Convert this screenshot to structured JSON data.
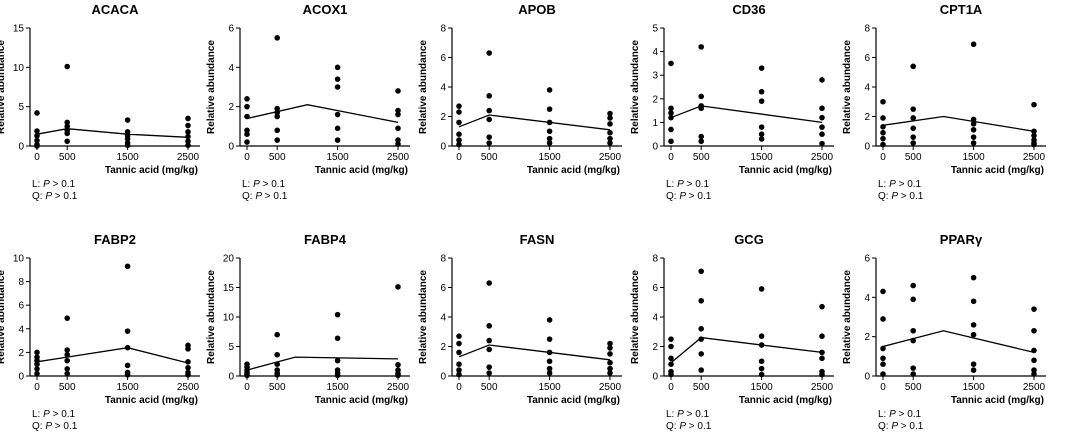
{
  "figure": {
    "xlabel": "Tannic acid (mg/kg)",
    "ylabel": "Relative abundance",
    "colors": {
      "points": "#000000",
      "axes": "#000000",
      "background": "#ffffff"
    }
  },
  "chart_data": [
    {
      "type": "scatter",
      "title": "ACACA",
      "xlabel": "Tannic acid (mg/kg)",
      "ylabel": "Relative abundance",
      "x_categories": [
        "0",
        "500",
        "1500",
        "2500"
      ],
      "ylim": [
        0,
        15
      ],
      "yticks": [
        0,
        5,
        10,
        15
      ],
      "points": [
        [
          0,
          4.2
        ],
        [
          0,
          1.9
        ],
        [
          0,
          1.3
        ],
        [
          0,
          0.7
        ],
        [
          0,
          0.2
        ],
        [
          0,
          0.0
        ],
        [
          500,
          10.1
        ],
        [
          500,
          3.0
        ],
        [
          500,
          2.5
        ],
        [
          500,
          2.0
        ],
        [
          500,
          1.6
        ],
        [
          500,
          0.6
        ],
        [
          1500,
          3.3
        ],
        [
          1500,
          1.8
        ],
        [
          1500,
          1.3
        ],
        [
          1500,
          0.9
        ],
        [
          1500,
          0.4
        ],
        [
          1500,
          0.1
        ],
        [
          2500,
          3.5
        ],
        [
          2500,
          2.6
        ],
        [
          2500,
          1.8
        ],
        [
          2500,
          1.2
        ],
        [
          2500,
          0.6
        ],
        [
          2500,
          0.1
        ]
      ],
      "trend": [
        [
          0,
          1.5
        ],
        [
          500,
          2.2
        ],
        [
          1500,
          1.5
        ],
        [
          2500,
          1.1
        ]
      ],
      "stats": {
        "L": "P > 0.1",
        "Q": "P > 0.1"
      }
    },
    {
      "type": "scatter",
      "title": "ACOX1",
      "xlabel": "Tannic acid (mg/kg)",
      "ylabel": "Relative abundance",
      "x_categories": [
        "0",
        "500",
        "1500",
        "2500"
      ],
      "ylim": [
        0,
        6
      ],
      "yticks": [
        0,
        2,
        4,
        6
      ],
      "points": [
        [
          0,
          2.4
        ],
        [
          0,
          2.0
        ],
        [
          0,
          1.5
        ],
        [
          0,
          0.8
        ],
        [
          0,
          0.6
        ],
        [
          0,
          0.2
        ],
        [
          500,
          5.5
        ],
        [
          500,
          1.9
        ],
        [
          500,
          1.7
        ],
        [
          500,
          1.5
        ],
        [
          500,
          0.8
        ],
        [
          500,
          0.3
        ],
        [
          1500,
          4.0
        ],
        [
          1500,
          3.4
        ],
        [
          1500,
          3.0
        ],
        [
          1500,
          1.6
        ],
        [
          1500,
          0.9
        ],
        [
          1500,
          0.3
        ],
        [
          2500,
          2.8
        ],
        [
          2500,
          1.8
        ],
        [
          2500,
          1.6
        ],
        [
          2500,
          0.9
        ],
        [
          2500,
          0.3
        ],
        [
          2500,
          0.1
        ]
      ],
      "trend": [
        [
          0,
          1.4
        ],
        [
          1000,
          2.1
        ],
        [
          2500,
          1.2
        ]
      ],
      "stats": {
        "L": "P > 0.1",
        "Q": "P > 0.1"
      }
    },
    {
      "type": "scatter",
      "title": "APOB",
      "xlabel": "Tannic acid (mg/kg)",
      "ylabel": "Relative abundance",
      "x_categories": [
        "0",
        "500",
        "1500",
        "2500"
      ],
      "ylim": [
        0,
        8
      ],
      "yticks": [
        0,
        2,
        4,
        6,
        8
      ],
      "points": [
        [
          0,
          2.7
        ],
        [
          0,
          2.3
        ],
        [
          0,
          1.6
        ],
        [
          0,
          0.8
        ],
        [
          0,
          0.4
        ],
        [
          0,
          0.1
        ],
        [
          500,
          6.3
        ],
        [
          500,
          3.4
        ],
        [
          500,
          2.4
        ],
        [
          500,
          1.8
        ],
        [
          500,
          0.6
        ],
        [
          500,
          0.2
        ],
        [
          1500,
          3.8
        ],
        [
          1500,
          2.5
        ],
        [
          1500,
          1.6
        ],
        [
          1500,
          1.0
        ],
        [
          1500,
          0.5
        ],
        [
          1500,
          0.2
        ],
        [
          2500,
          2.2
        ],
        [
          2500,
          1.9
        ],
        [
          2500,
          1.5
        ],
        [
          2500,
          0.9
        ],
        [
          2500,
          0.5
        ],
        [
          2500,
          0.2
        ]
      ],
      "trend": [
        [
          0,
          1.3
        ],
        [
          500,
          2.1
        ],
        [
          2500,
          1.1
        ]
      ],
      "stats": {}
    },
    {
      "type": "scatter",
      "title": "CD36",
      "xlabel": "Tannic acid (mg/kg)",
      "ylabel": "Relative abundance",
      "x_categories": [
        "0",
        "500",
        "1500",
        "2500"
      ],
      "ylim": [
        0,
        5
      ],
      "yticks": [
        0,
        1,
        2,
        3,
        4,
        5
      ],
      "points": [
        [
          0,
          3.5
        ],
        [
          0,
          1.6
        ],
        [
          0,
          1.4
        ],
        [
          0,
          1.2
        ],
        [
          0,
          0.7
        ],
        [
          0,
          0.2
        ],
        [
          500,
          4.2
        ],
        [
          500,
          2.1
        ],
        [
          500,
          1.7
        ],
        [
          500,
          1.6
        ],
        [
          500,
          0.4
        ],
        [
          500,
          0.2
        ],
        [
          1500,
          3.3
        ],
        [
          1500,
          2.3
        ],
        [
          1500,
          1.9
        ],
        [
          1500,
          0.8
        ],
        [
          1500,
          0.5
        ],
        [
          1500,
          0.3
        ],
        [
          2500,
          2.8
        ],
        [
          2500,
          1.6
        ],
        [
          2500,
          1.2
        ],
        [
          2500,
          0.8
        ],
        [
          2500,
          0.5
        ],
        [
          2500,
          0.1
        ]
      ],
      "trend": [
        [
          0,
          1.2
        ],
        [
          500,
          1.7
        ],
        [
          2500,
          1.0
        ]
      ],
      "stats": {
        "L": "P > 0.1",
        "Q": "P > 0.1"
      }
    },
    {
      "type": "scatter",
      "title": "CPT1A",
      "xlabel": "Tannic acid (mg/kg)",
      "ylabel": "Relative abundance",
      "x_categories": [
        "0",
        "500",
        "1500",
        "2500"
      ],
      "ylim": [
        0,
        8
      ],
      "yticks": [
        0,
        2,
        4,
        6,
        8
      ],
      "points": [
        [
          0,
          3.0
        ],
        [
          0,
          1.9
        ],
        [
          0,
          1.3
        ],
        [
          0,
          0.9
        ],
        [
          0,
          0.5
        ],
        [
          0,
          0.1
        ],
        [
          500,
          5.4
        ],
        [
          500,
          2.5
        ],
        [
          500,
          1.9
        ],
        [
          500,
          1.2
        ],
        [
          500,
          0.6
        ],
        [
          500,
          0.2
        ],
        [
          1500,
          6.9
        ],
        [
          1500,
          1.8
        ],
        [
          1500,
          1.5
        ],
        [
          1500,
          1.1
        ],
        [
          1500,
          0.6
        ],
        [
          1500,
          0.2
        ],
        [
          2500,
          2.8
        ],
        [
          2500,
          1.0
        ],
        [
          2500,
          0.7
        ],
        [
          2500,
          0.4
        ],
        [
          2500,
          0.2
        ],
        [
          2500,
          0.1
        ]
      ],
      "trend": [
        [
          0,
          1.4
        ],
        [
          1000,
          2.0
        ],
        [
          2500,
          1.0
        ]
      ],
      "stats": {
        "L": "P > 0.1",
        "Q": "P > 0.1"
      }
    },
    {
      "type": "scatter",
      "title": "FABP2",
      "xlabel": "Tannic acid (mg/kg)",
      "ylabel": "Relative abundance",
      "x_categories": [
        "0",
        "500",
        "1500",
        "2500"
      ],
      "ylim": [
        0,
        10
      ],
      "yticks": [
        0,
        2,
        4,
        6,
        8,
        10
      ],
      "points": [
        [
          0,
          2.0
        ],
        [
          0,
          1.6
        ],
        [
          0,
          1.3
        ],
        [
          0,
          1.0
        ],
        [
          0,
          0.6
        ],
        [
          0,
          0.2
        ],
        [
          500,
          4.9
        ],
        [
          500,
          2.2
        ],
        [
          500,
          1.8
        ],
        [
          500,
          1.3
        ],
        [
          500,
          0.6
        ],
        [
          500,
          0.2
        ],
        [
          1500,
          9.3
        ],
        [
          1500,
          3.8
        ],
        [
          1500,
          2.4
        ],
        [
          1500,
          0.9
        ],
        [
          1500,
          0.3
        ],
        [
          1500,
          0.1
        ],
        [
          2500,
          2.6
        ],
        [
          2500,
          2.3
        ],
        [
          2500,
          1.2
        ],
        [
          2500,
          0.7
        ],
        [
          2500,
          0.3
        ],
        [
          2500,
          0.1
        ]
      ],
      "trend": [
        [
          0,
          1.2
        ],
        [
          500,
          1.6
        ],
        [
          1500,
          2.4
        ],
        [
          2500,
          1.1
        ]
      ],
      "stats": {
        "L": "P > 0.1",
        "Q": "P > 0.1"
      }
    },
    {
      "type": "scatter",
      "title": "FABP4",
      "xlabel": "Tannic acid (mg/kg)",
      "ylabel": "Relative abundance",
      "x_categories": [
        "0",
        "500",
        "1500",
        "2500"
      ],
      "ylim": [
        0,
        20
      ],
      "yticks": [
        0,
        5,
        10,
        15,
        20
      ],
      "points": [
        [
          0,
          2.0
        ],
        [
          0,
          1.5
        ],
        [
          0,
          1.0
        ],
        [
          0,
          0.6
        ],
        [
          0,
          0.3
        ],
        [
          0,
          0.1
        ],
        [
          500,
          7.0
        ],
        [
          500,
          3.6
        ],
        [
          500,
          2.0
        ],
        [
          500,
          1.0
        ],
        [
          500,
          0.5
        ],
        [
          500,
          0.2
        ],
        [
          1500,
          10.4
        ],
        [
          1500,
          6.4
        ],
        [
          1500,
          2.6
        ],
        [
          1500,
          1.0
        ],
        [
          1500,
          0.5
        ],
        [
          1500,
          0.1
        ],
        [
          2500,
          15.1
        ],
        [
          2500,
          1.9
        ],
        [
          2500,
          1.0
        ],
        [
          2500,
          0.4
        ],
        [
          2500,
          0.1
        ]
      ],
      "trend": [
        [
          0,
          1.0
        ],
        [
          800,
          3.2
        ],
        [
          2500,
          2.9
        ]
      ],
      "stats": {}
    },
    {
      "type": "scatter",
      "title": "FASN",
      "xlabel": "Tannic acid (mg/kg)",
      "ylabel": "Relative abundance",
      "x_categories": [
        "0",
        "500",
        "1500",
        "2500"
      ],
      "ylim": [
        0,
        8
      ],
      "yticks": [
        0,
        2,
        4,
        6,
        8
      ],
      "points": [
        [
          0,
          2.7
        ],
        [
          0,
          2.2
        ],
        [
          0,
          1.6
        ],
        [
          0,
          0.8
        ],
        [
          0,
          0.4
        ],
        [
          0,
          0.1
        ],
        [
          500,
          6.3
        ],
        [
          500,
          3.4
        ],
        [
          500,
          2.4
        ],
        [
          500,
          1.8
        ],
        [
          500,
          0.6
        ],
        [
          500,
          0.2
        ],
        [
          1500,
          3.8
        ],
        [
          1500,
          2.5
        ],
        [
          1500,
          1.6
        ],
        [
          1500,
          1.0
        ],
        [
          1500,
          0.5
        ],
        [
          1500,
          0.2
        ],
        [
          2500,
          2.2
        ],
        [
          2500,
          1.9
        ],
        [
          2500,
          1.5
        ],
        [
          2500,
          0.9
        ],
        [
          2500,
          0.5
        ],
        [
          2500,
          0.2
        ]
      ],
      "trend": [
        [
          0,
          1.3
        ],
        [
          500,
          2.1
        ],
        [
          2500,
          1.1
        ]
      ],
      "stats": {}
    },
    {
      "type": "scatter",
      "title": "GCG",
      "xlabel": "Tannic acid (mg/kg)",
      "ylabel": "Relative abundance",
      "x_categories": [
        "0",
        "500",
        "1500",
        "2500"
      ],
      "ylim": [
        0,
        8
      ],
      "yticks": [
        0,
        2,
        4,
        6,
        8
      ],
      "points": [
        [
          0,
          2.5
        ],
        [
          0,
          2.0
        ],
        [
          0,
          1.2
        ],
        [
          0,
          0.8
        ],
        [
          0,
          0.3
        ],
        [
          0,
          0.1
        ],
        [
          500,
          7.1
        ],
        [
          500,
          5.1
        ],
        [
          500,
          3.2
        ],
        [
          500,
          2.5
        ],
        [
          500,
          1.5
        ],
        [
          500,
          0.4
        ],
        [
          1500,
          5.9
        ],
        [
          1500,
          2.7
        ],
        [
          1500,
          2.1
        ],
        [
          1500,
          1.0
        ],
        [
          1500,
          0.5
        ],
        [
          1500,
          0.1
        ],
        [
          2500,
          4.7
        ],
        [
          2500,
          2.7
        ],
        [
          2500,
          1.6
        ],
        [
          2500,
          1.2
        ],
        [
          2500,
          0.3
        ],
        [
          2500,
          0.1
        ]
      ],
      "trend": [
        [
          0,
          0.9
        ],
        [
          500,
          2.6
        ],
        [
          2500,
          1.6
        ]
      ],
      "stats": {
        "L": "P > 0.1",
        "Q": "P > 0.1"
      }
    },
    {
      "type": "scatter",
      "title": "PPARγ",
      "xlabel": "Tannic acid (mg/kg)",
      "ylabel": "Relative abundance",
      "x_categories": [
        "0",
        "500",
        "1500",
        "2500"
      ],
      "ylim": [
        0,
        6
      ],
      "yticks": [
        0,
        2,
        4,
        6
      ],
      "points": [
        [
          0,
          4.3
        ],
        [
          0,
          2.9
        ],
        [
          0,
          1.4
        ],
        [
          0,
          0.9
        ],
        [
          0,
          0.6
        ],
        [
          0,
          0.1
        ],
        [
          500,
          4.6
        ],
        [
          500,
          3.9
        ],
        [
          500,
          2.3
        ],
        [
          500,
          1.8
        ],
        [
          500,
          0.4
        ],
        [
          500,
          0.1
        ],
        [
          1500,
          5.0
        ],
        [
          1500,
          3.8
        ],
        [
          1500,
          2.6
        ],
        [
          1500,
          2.1
        ],
        [
          1500,
          0.6
        ],
        [
          1500,
          0.3
        ],
        [
          2500,
          3.4
        ],
        [
          2500,
          2.3
        ],
        [
          2500,
          1.3
        ],
        [
          2500,
          0.8
        ],
        [
          2500,
          0.3
        ],
        [
          2500,
          0.1
        ]
      ],
      "trend": [
        [
          0,
          1.5
        ],
        [
          1000,
          2.3
        ],
        [
          2500,
          1.2
        ]
      ],
      "stats": {
        "L": "P > 0.1",
        "Q": "P > 0.1"
      }
    }
  ]
}
